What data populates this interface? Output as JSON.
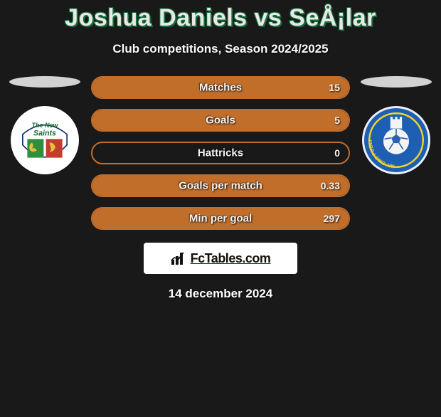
{
  "header": {
    "title": "Joshua Daniels vs SeÅ¡lar",
    "subtitle": "Club competitions, Season 2024/2025",
    "title_color": "#e8e8e8",
    "title_outline": "#166e38",
    "title_fontsize": 34
  },
  "background_color": "#1a1919",
  "bar_style": {
    "height": 32,
    "border_color": "#c26e2b",
    "border_radius": 16,
    "fill_color": "#c26e2b",
    "label_color": "#f5f5f5",
    "label_fontsize": 15
  },
  "stats": [
    {
      "label": "Matches",
      "left_text": "",
      "right_text": "15",
      "left_fill_pct": 0,
      "right_fill_pct": 100
    },
    {
      "label": "Goals",
      "left_text": "",
      "right_text": "5",
      "left_fill_pct": 0,
      "right_fill_pct": 100
    },
    {
      "label": "Hattricks",
      "left_text": "",
      "right_text": "0",
      "left_fill_pct": 0,
      "right_fill_pct": 0
    },
    {
      "label": "Goals per match",
      "left_text": "",
      "right_text": "0.33",
      "left_fill_pct": 0,
      "right_fill_pct": 100
    },
    {
      "label": "Min per goal",
      "left_text": "",
      "right_text": "297",
      "left_fill_pct": 0,
      "right_fill_pct": 100
    }
  ],
  "clubs": {
    "left": {
      "name": "The New Saints",
      "badge_bg": "#ffffff",
      "badge_text_color": "#1c6b2f"
    },
    "right": {
      "name": "NK CMC Publikum",
      "badge_bg": "#1e5fb3",
      "badge_accent": "#f4d326"
    }
  },
  "footer": {
    "brand": "FcTables.com",
    "date": "14 december 2024"
  }
}
